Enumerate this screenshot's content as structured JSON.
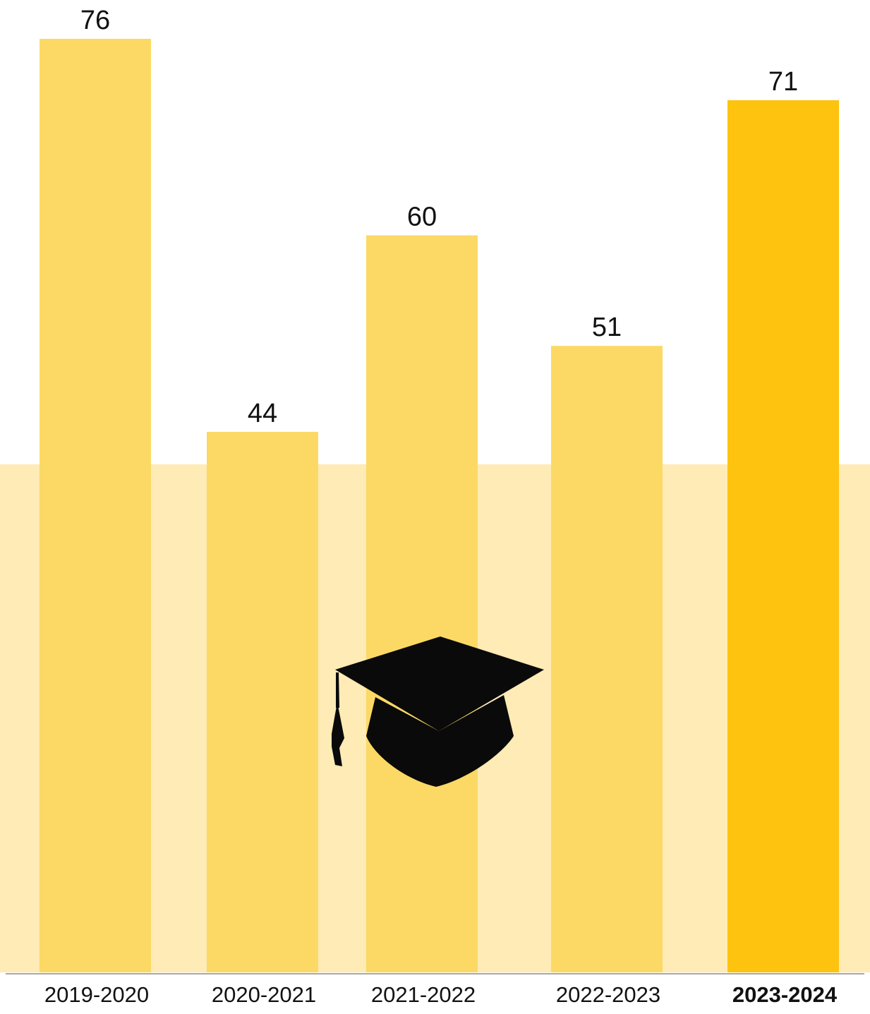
{
  "chart_data": {
    "type": "bar",
    "title": "",
    "xlabel": "",
    "ylabel": "",
    "categories": [
      "2019-2020",
      "2020-2021",
      "2021-2022",
      "2022-2023",
      "2023-2024"
    ],
    "values": [
      76,
      44,
      60,
      51,
      71
    ],
    "data_labels": [
      "76",
      "44",
      "60",
      "51",
      "71"
    ],
    "highlighted_category": "2023-2024",
    "ylim": [
      0,
      80
    ],
    "grid": false,
    "legend": "none",
    "colors": {
      "bar": "#fcd965",
      "bar_highlight": "#fec30f",
      "band_background": "#feebb5",
      "baseline": "#8c8c8c",
      "text": "#111111",
      "icon": "#0a0a0a"
    }
  },
  "decoration": {
    "icon": "graduation-cap-icon"
  }
}
